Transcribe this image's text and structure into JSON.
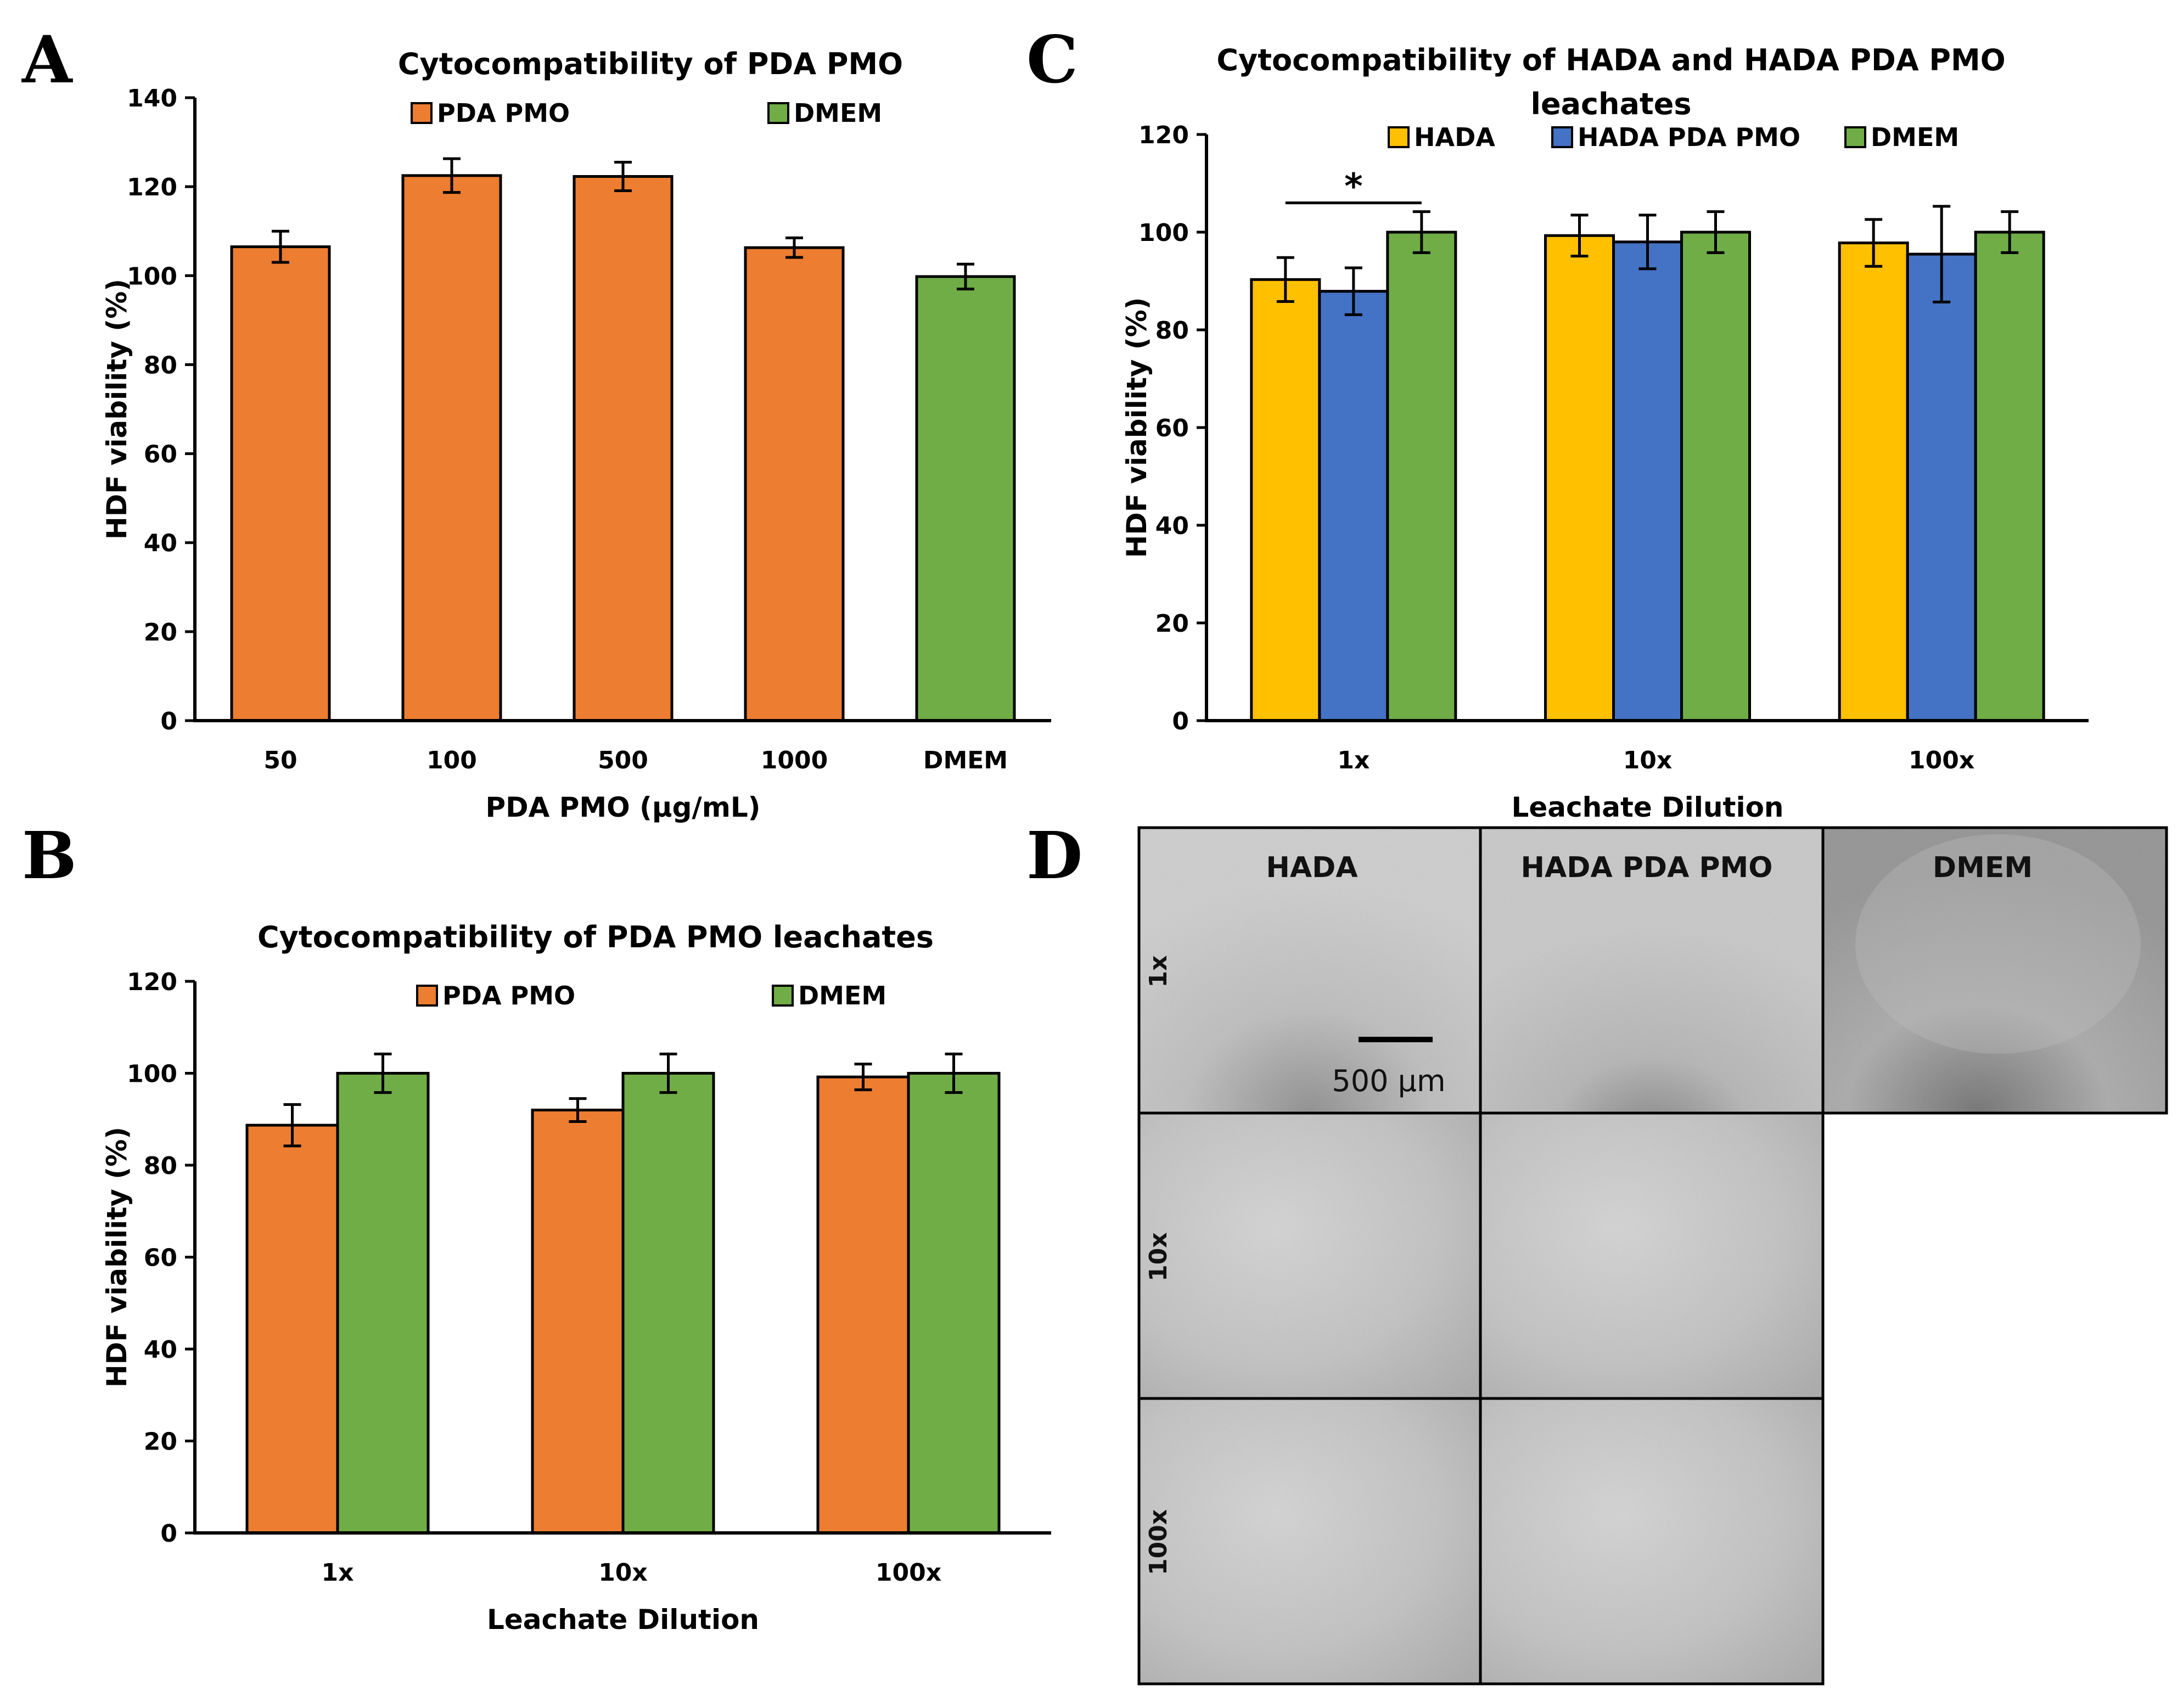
{
  "colors": {
    "pda_pmo": "#ED7D31",
    "dmem": "#70AD47",
    "hada": "#FFC000",
    "hada_pda_pmo": "#4472C4"
  },
  "panels": {
    "a": "A",
    "b": "B",
    "c": "C",
    "d": "D"
  },
  "chart_data": [
    {
      "id": "A",
      "type": "bar",
      "title": "Cytocompatibility of PDA PMO",
      "xlabel": "PDA PMO (µg/mL)",
      "ylabel": "HDF viability (%)",
      "ylim": [
        0,
        140
      ],
      "yticks": [
        "0",
        "20",
        "40",
        "60",
        "80",
        "100",
        "120",
        "140"
      ],
      "categories": [
        "50",
        "100",
        "500",
        "1000",
        "DMEM"
      ],
      "values": [
        106.5,
        122.5,
        122.3,
        106.3,
        99.8
      ],
      "errors": [
        3.5,
        3.8,
        3.2,
        2.2,
        2.8
      ],
      "bar_series": [
        "PDA PMO",
        "PDA PMO",
        "PDA PMO",
        "PDA PMO",
        "DMEM"
      ],
      "legend": [
        "PDA PMO",
        "DMEM"
      ],
      "legend_position": "top"
    },
    {
      "id": "B",
      "type": "bar",
      "title": "Cytocompatibility of PDA PMO leachates",
      "xlabel": "Leachate Dilution",
      "ylabel": "HDF viability (%)",
      "ylim": [
        0,
        120
      ],
      "yticks": [
        "0",
        "20",
        "40",
        "60",
        "80",
        "100",
        "120"
      ],
      "categories": [
        "1x",
        "10x",
        "100x"
      ],
      "series": [
        {
          "name": "PDA PMO",
          "values": [
            88.7,
            92.0,
            99.2
          ],
          "errors": [
            4.5,
            2.5,
            2.8
          ]
        },
        {
          "name": "DMEM",
          "values": [
            100.0,
            100.0,
            100.0
          ],
          "errors": [
            4.2,
            4.2,
            4.2
          ]
        }
      ],
      "legend_position": "top"
    },
    {
      "id": "C",
      "type": "bar",
      "title": "Cytocompatibility of HADA and HADA PDA PMO leachates",
      "xlabel": "Leachate Dilution",
      "ylabel": "HDF viability (%)",
      "ylim": [
        0,
        120
      ],
      "yticks": [
        "0",
        "20",
        "40",
        "60",
        "80",
        "100",
        "120"
      ],
      "categories": [
        "1x",
        "10x",
        "100x"
      ],
      "series": [
        {
          "name": "HADA",
          "values": [
            90.3,
            99.3,
            97.8
          ],
          "errors": [
            4.5,
            4.2,
            4.8
          ]
        },
        {
          "name": "HADA PDA PMO",
          "values": [
            87.9,
            98.0,
            95.5
          ],
          "errors": [
            4.8,
            5.5,
            9.8
          ]
        },
        {
          "name": "DMEM",
          "values": [
            100.0,
            100.0,
            100.0
          ],
          "errors": [
            4.2,
            4.2,
            4.2
          ]
        }
      ],
      "significance": {
        "label": "*",
        "from_category": "1x",
        "from_series": "HADA",
        "to_series": "DMEM",
        "level": 106
      },
      "legend_position": "top"
    }
  ],
  "micrographs": {
    "columns": [
      "HADA",
      "HADA PDA PMO",
      "DMEM"
    ],
    "rows": [
      "1x",
      "10x",
      "100x"
    ],
    "scale_bar": "500 µm"
  }
}
